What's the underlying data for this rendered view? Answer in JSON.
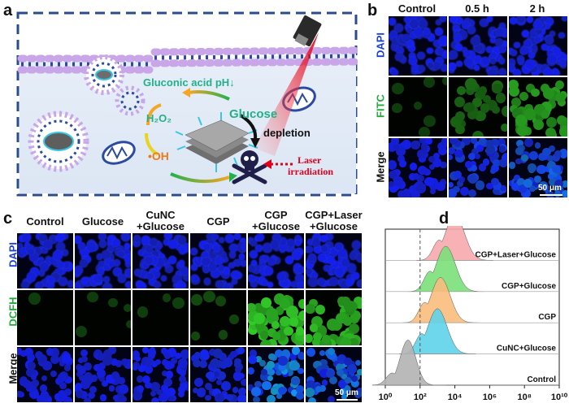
{
  "panels": {
    "a": "a",
    "b": "b",
    "c": "c",
    "d": "d"
  },
  "panel_a": {
    "gluconic_label": "Gluconic acid pH↓",
    "h2o2_label": "H₂O₂",
    "glucose_label": "Glucose",
    "depletion_label": "depletion",
    "oh_label": "•OH",
    "laser_label": "Laser",
    "irradiation_label": "irradiation"
  },
  "panel_b": {
    "columns": [
      "Control",
      "0.5 h",
      "2 h"
    ],
    "rows": [
      "DAPI",
      "FITC",
      "Merge"
    ],
    "row_colors": [
      "#1a3fd6",
      "#22aa3a",
      "#111111"
    ],
    "scale_bar": "50 μm"
  },
  "panel_c": {
    "columns": [
      {
        "line1": "Control",
        "line2": ""
      },
      {
        "line1": "Glucose",
        "line2": ""
      },
      {
        "line1": "CuNC",
        "line2": "+Glucose"
      },
      {
        "line1": "CGP",
        "line2": ""
      },
      {
        "line1": "CGP",
        "line2": "+Glucose"
      },
      {
        "line1": "CGP+Laser",
        "line2": "+Glucose"
      }
    ],
    "rows": [
      "DAPI",
      "DCFH",
      "Merge"
    ],
    "row_colors": [
      "#1a3fd6",
      "#22aa3a",
      "#111111"
    ],
    "scale_bar": "50 μm"
  },
  "chart_data": {
    "type": "area",
    "x_scale": "log",
    "xlim": [
      1,
      10000000000
    ],
    "x_ticks": [
      "10⁰",
      "10²",
      "10⁴",
      "10⁶",
      "10⁸",
      "10¹⁰"
    ],
    "reference_line_x": 100,
    "series": [
      {
        "name": "CGP+Laser+Glucose",
        "color": "#f7a8ac",
        "peak_x": 10000
      },
      {
        "name": "CGP+Glucose",
        "color": "#7be07a",
        "peak_x": 3000
      },
      {
        "name": "CGP",
        "color": "#f8bd7c",
        "peak_x": 1500
      },
      {
        "name": "CuNC+Glucose",
        "color": "#5fd3ea",
        "peak_x": 1000
      },
      {
        "name": "Control",
        "color": "#b3b3b3",
        "peak_x": 20
      }
    ]
  }
}
